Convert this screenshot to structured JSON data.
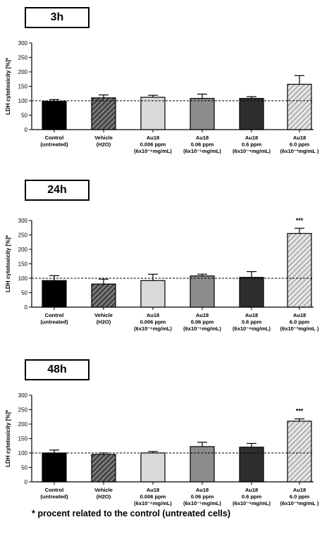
{
  "chart_data": [
    {
      "type": "bar",
      "title": "3h",
      "ylabel": "LDH cytotoxicity [%]*",
      "ylim": [
        0,
        300
      ],
      "yticks": [
        0,
        50,
        100,
        150,
        200,
        250,
        300
      ],
      "reference_line": 100,
      "categories": [
        [
          "Control",
          "(untreated)"
        ],
        [
          "Vehicle",
          "(H2O)"
        ],
        [
          "Au18",
          "0.006 ppm",
          "(6x10⁻⁶mg/mL)"
        ],
        [
          "Au18",
          "0.06 ppm",
          "(6x10⁻⁵mg/mL)"
        ],
        [
          "Au18",
          "0.6 ppm",
          "(6x10⁻⁴mg/mL)"
        ],
        [
          "Au18",
          "6.0 ppm",
          "(6x10⁻³mg/mL )"
        ]
      ],
      "values": [
        98,
        110,
        112,
        108,
        108,
        157
      ],
      "errors": [
        6,
        10,
        7,
        15,
        6,
        30
      ],
      "significance": [
        "",
        "",
        "",
        "",
        "",
        ""
      ]
    },
    {
      "type": "bar",
      "title": "24h",
      "ylabel": "LDH cytotoxicity [%]*",
      "ylim": [
        0,
        300
      ],
      "yticks": [
        0,
        50,
        100,
        150,
        200,
        250,
        300
      ],
      "reference_line": 100,
      "categories": [
        [
          "Control",
          "(untreated)"
        ],
        [
          "Vehicle",
          "(H2O)"
        ],
        [
          "Au18",
          "0.006 ppm",
          "(6x10⁻⁶mg/mL)"
        ],
        [
          "Au18",
          "0.06 ppm",
          "(6x10⁻⁵mg/mL)"
        ],
        [
          "Au18",
          "0.6 ppm",
          "(6x10⁻⁴mg/mL)"
        ],
        [
          "Au18",
          "6.0 ppm",
          "(6x10⁻³mg/mL )"
        ]
      ],
      "values": [
        92,
        80,
        92,
        108,
        103,
        255
      ],
      "errors": [
        17,
        17,
        22,
        6,
        20,
        18
      ],
      "significance": [
        "",
        "",
        "",
        "",
        "",
        "***"
      ]
    },
    {
      "type": "bar",
      "title": "48h",
      "ylabel": "LDH cytotoxicity [%]*",
      "ylim": [
        0,
        300
      ],
      "yticks": [
        0,
        50,
        100,
        150,
        200,
        250,
        300
      ],
      "reference_line": 100,
      "categories": [
        [
          "Control",
          "(untreated)"
        ],
        [
          "Vehicle",
          "(H2O)"
        ],
        [
          "Au18",
          "0.006 ppm",
          "(6x10⁻⁶mg/mL)"
        ],
        [
          "Au18",
          "0.06 ppm",
          "(6x10⁻⁵mg/mL)"
        ],
        [
          "Au18",
          "0.6 ppm",
          "(6x10⁻⁴mg/mL)"
        ],
        [
          "Au18",
          "6.0 ppm",
          "(6x10⁻³mg/mL )"
        ]
      ],
      "values": [
        100,
        95,
        100,
        122,
        120,
        210
      ],
      "errors": [
        10,
        5,
        5,
        15,
        13,
        8
      ],
      "significance": [
        "",
        "",
        "",
        "",
        "",
        "***"
      ]
    }
  ],
  "footnote": "* procent related to the control (untreated cells)",
  "bar_styles": [
    {
      "fill": "#000000",
      "pattern": "none"
    },
    {
      "fill": "#3a3a3a",
      "pattern": "hatch-dark"
    },
    {
      "fill": "#d9d9d9",
      "pattern": "none"
    },
    {
      "fill": "#8c8c8c",
      "pattern": "none"
    },
    {
      "fill": "#2e2e2e",
      "pattern": "none"
    },
    {
      "fill": "#bdbdbd",
      "pattern": "hatch-light"
    }
  ]
}
